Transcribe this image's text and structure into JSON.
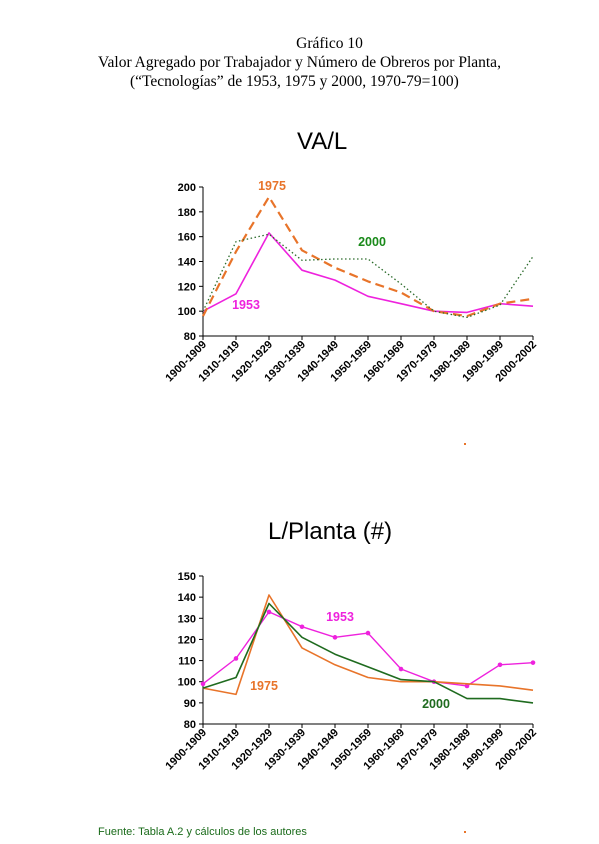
{
  "header": {
    "line1": "Gráfico 10",
    "line2": "Valor Agregado por Trabajador y Número de Obreros por Planta,",
    "line3": "(“Tecnologías” de 1953, 1975 y 2000, 1970-79=100)"
  },
  "colors": {
    "s1953": "#ee22dd",
    "s1975": "#e8742a",
    "s2000_top": "#1a8a1a",
    "s2000_top_line": "#2a6a2a",
    "s2000_bottom": "#1f6b1f"
  },
  "footer": {
    "source": "Fuente: Tabla A.2  y cálculos de los autores"
  },
  "chart_data": [
    {
      "type": "line",
      "title": "VA/L",
      "categories": [
        "1900-1909",
        "1910-1919",
        "1920-1929",
        "1930-1939",
        "1940-1949",
        "1950-1959",
        "1960-1969",
        "1970-1979",
        "1980-1989",
        "1990-1999",
        "2000-2002"
      ],
      "ylim": [
        80,
        200
      ],
      "yticks": [
        80,
        100,
        120,
        140,
        160,
        180,
        200
      ],
      "grid": false,
      "series": [
        {
          "name": "1953",
          "values": [
            100,
            114,
            163,
            133,
            125,
            112,
            106,
            100,
            99,
            106,
            104
          ]
        },
        {
          "name": "1975",
          "values": [
            96,
            148,
            192,
            149,
            135,
            124,
            115,
            100,
            96,
            106,
            110
          ]
        },
        {
          "name": "2000",
          "values": [
            100,
            156,
            162,
            141,
            142,
            142,
            122,
            100,
            95,
            105,
            144
          ]
        }
      ]
    },
    {
      "type": "line",
      "title": "L/Planta (#)",
      "categories": [
        "1900-1909",
        "1910-1919",
        "1920-1929",
        "1930-1939",
        "1940-1949",
        "1950-1959",
        "1960-1969",
        "1970-1979",
        "1980-1989",
        "1990-1999",
        "2000-2002"
      ],
      "ylim": [
        80,
        150
      ],
      "yticks": [
        80,
        90,
        100,
        110,
        120,
        130,
        140,
        150
      ],
      "grid": false,
      "series": [
        {
          "name": "1953",
          "values": [
            99,
            111,
            133,
            126,
            121,
            123,
            106,
            100,
            98,
            108,
            109
          ]
        },
        {
          "name": "1975",
          "values": [
            97,
            94,
            141,
            116,
            108,
            102,
            100,
            100,
            99,
            98,
            96
          ]
        },
        {
          "name": "2000",
          "values": [
            97,
            102,
            137,
            121,
            113,
            107,
            101,
            100,
            92,
            92,
            90
          ]
        }
      ]
    }
  ]
}
